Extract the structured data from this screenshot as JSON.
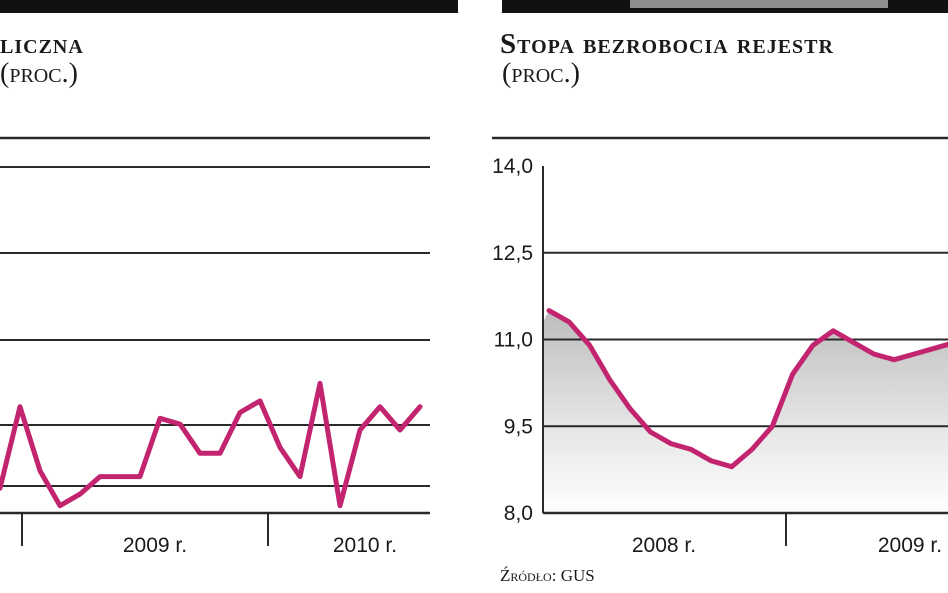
{
  "charts": {
    "left": {
      "title": "liczna",
      "subtitle": "(proc.)"
    },
    "right": {
      "title": "Stopa bezrobocia rejestr",
      "subtitle": "(proc.)",
      "source": "Źródło: GUS"
    }
  },
  "chart_data": [
    {
      "type": "line",
      "title": "liczna",
      "subtitle": "(proc.)",
      "x_tick_labels": [
        "2009 r.",
        "2010 r."
      ],
      "y_tick_labels": [],
      "grid": "horizontal",
      "series": [
        {
          "color": "#c2246f",
          "values": [
            -1.3,
            0.1,
            -1.0,
            -1.6,
            -1.4,
            -1.1,
            -1.1,
            -1.1,
            -0.1,
            -0.2,
            -0.7,
            -0.7,
            0.0,
            0.2,
            -0.6,
            -1.1,
            0.5,
            -1.6,
            -0.3,
            0.1,
            -0.3,
            0.1
          ]
        }
      ]
    },
    {
      "type": "line",
      "title": "Stopa bezrobocia rejestr",
      "subtitle": "(proc.)",
      "ylim": [
        8.0,
        14.0
      ],
      "y_ticks": [
        "14,0",
        "12,5",
        "11,0",
        "9,5",
        "8,0"
      ],
      "x_tick_labels": [
        "2008 r.",
        "2009 r."
      ],
      "grid": "horizontal",
      "area_fill": true,
      "series": [
        {
          "color": "#c2246f",
          "values": [
            11.5,
            11.3,
            10.9,
            10.3,
            9.8,
            9.4,
            9.2,
            9.1,
            8.9,
            8.8,
            9.1,
            9.5,
            10.4,
            10.9,
            11.15,
            10.95,
            10.75,
            10.65,
            10.75,
            10.85,
            10.95,
            11.0
          ]
        }
      ]
    }
  ]
}
